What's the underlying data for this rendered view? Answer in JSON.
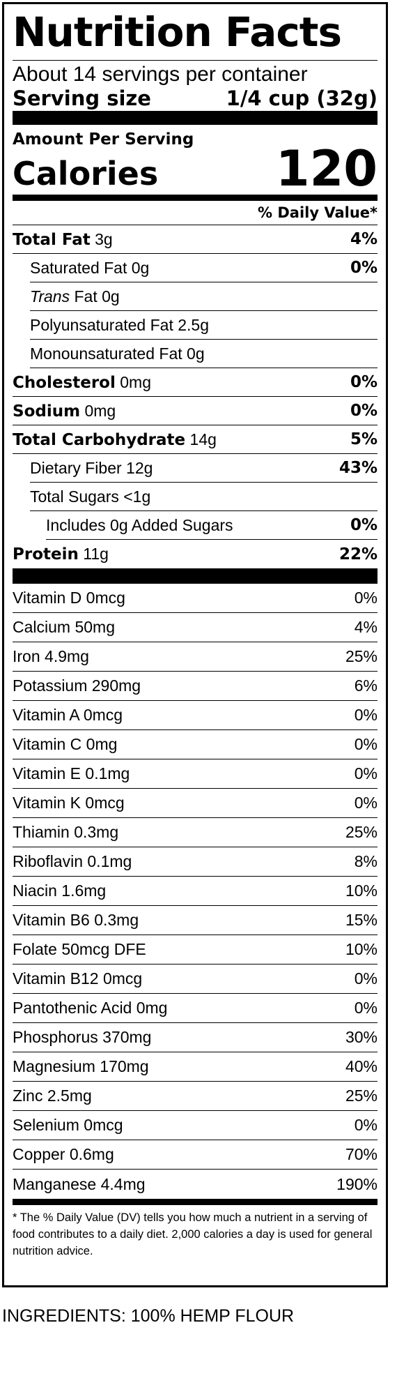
{
  "label": {
    "title": "Nutrition Facts",
    "servings_per_container": "About 14 servings per container",
    "serving_size_label": "Serving size",
    "serving_size_value": "1/4 cup (32g)",
    "amount_per_serving": "Amount Per Serving",
    "calories_label": "Calories",
    "calories_value": "120",
    "daily_value_header": "% Daily Value*",
    "nutrients": [
      {
        "name": "Total Fat",
        "amount": "3g",
        "dv": "4%"
      },
      {
        "name": "Saturated Fat",
        "amount": "0g",
        "dv": "0%"
      },
      {
        "name_italic": "Trans",
        "name_rest": "Fat",
        "amount": "0g",
        "dv": ""
      },
      {
        "name": "Polyunsaturated Fat",
        "amount": "2.5g",
        "dv": ""
      },
      {
        "name": "Monounsaturated Fat",
        "amount": "0g",
        "dv": ""
      },
      {
        "name": "Cholesterol",
        "amount": "0mg",
        "dv": "0%"
      },
      {
        "name": "Sodium",
        "amount": "0mg",
        "dv": "0%"
      },
      {
        "name": "Total Carbohydrate",
        "amount": "14g",
        "dv": "5%"
      },
      {
        "name": "Dietary Fiber",
        "amount": "12g",
        "dv": "43%"
      },
      {
        "name": "Total Sugars",
        "amount": "<1g",
        "dv": ""
      },
      {
        "name": "Includes 0g Added Sugars",
        "amount": "",
        "dv": "0%"
      },
      {
        "name": "Protein",
        "amount": "11g",
        "dv": "22%"
      }
    ],
    "vitamins": [
      {
        "name": "Vitamin D 0mcg",
        "dv": "0%"
      },
      {
        "name": "Calcium 50mg",
        "dv": "4%"
      },
      {
        "name": "Iron 4.9mg",
        "dv": "25%"
      },
      {
        "name": "Potassium 290mg",
        "dv": "6%"
      },
      {
        "name": "Vitamin A 0mcg",
        "dv": "0%"
      },
      {
        "name": "Vitamin C 0mg",
        "dv": "0%"
      },
      {
        "name": "Vitamin E 0.1mg",
        "dv": "0%"
      },
      {
        "name": "Vitamin K 0mcg",
        "dv": "0%"
      },
      {
        "name": "Thiamin 0.3mg",
        "dv": "25%"
      },
      {
        "name": "Riboflavin 0.1mg",
        "dv": "8%"
      },
      {
        "name": "Niacin 1.6mg",
        "dv": "10%"
      },
      {
        "name": "Vitamin B6 0.3mg",
        "dv": "15%"
      },
      {
        "name": "Folate 50mcg DFE",
        "dv": "10%"
      },
      {
        "name": "Vitamin B12 0mcg",
        "dv": "0%"
      },
      {
        "name": "Pantothenic Acid 0mg",
        "dv": "0%"
      },
      {
        "name": "Phosphorus 370mg",
        "dv": "30%"
      },
      {
        "name": "Magnesium 170mg",
        "dv": "40%"
      },
      {
        "name": "Zinc 2.5mg",
        "dv": "25%"
      },
      {
        "name": "Selenium 0mcg",
        "dv": "0%"
      },
      {
        "name": "Copper 0.6mg",
        "dv": "70%"
      },
      {
        "name": "Manganese 4.4mg",
        "dv": "190%"
      }
    ],
    "footnote": "* The % Daily Value (DV) tells you how much a nutrient in a serving of food contributes to a daily diet. 2,000 calories a day is used for general nutrition advice."
  },
  "ingredients": "INGREDIENTS: 100% HEMP FLOUR"
}
